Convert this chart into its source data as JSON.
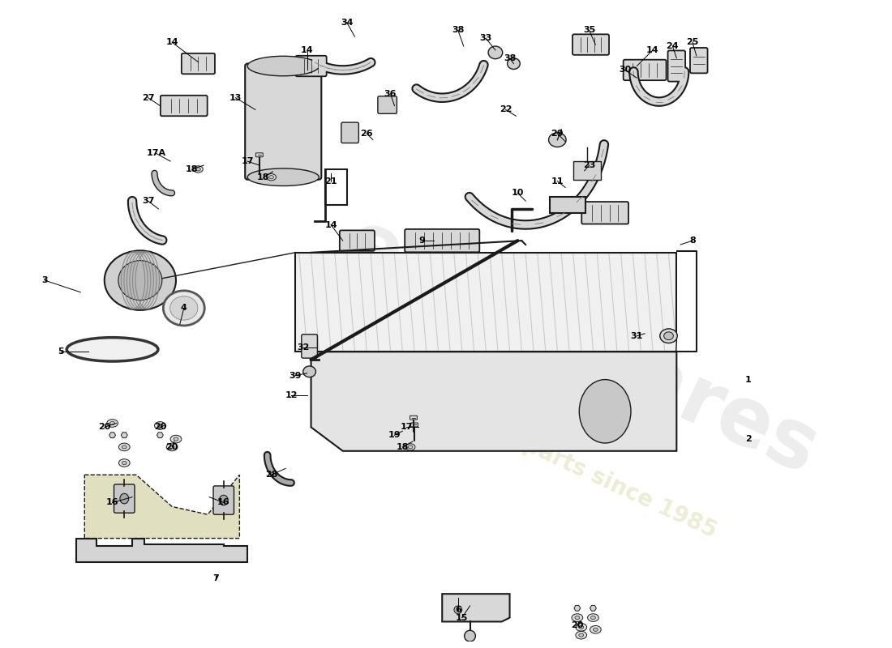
{
  "bg_color": "#ffffff",
  "lc": "#1a1a1a",
  "lw": 1.0,
  "watermark1": "eurospares",
  "watermark2": "a passion for parts since 1985",
  "labels": [
    [
      "1",
      940,
      470
    ],
    [
      "2",
      940,
      545
    ],
    [
      "3",
      55,
      345
    ],
    [
      "4",
      230,
      380
    ],
    [
      "5",
      75,
      435
    ],
    [
      "6",
      575,
      760
    ],
    [
      "7",
      270,
      720
    ],
    [
      "8",
      870,
      295
    ],
    [
      "9",
      530,
      295
    ],
    [
      "10",
      650,
      235
    ],
    [
      "11",
      700,
      220
    ],
    [
      "12",
      365,
      490
    ],
    [
      "13",
      295,
      115
    ],
    [
      "14",
      215,
      45
    ],
    [
      "14",
      385,
      55
    ],
    [
      "14",
      415,
      275
    ],
    [
      "14",
      820,
      55
    ],
    [
      "15",
      580,
      770
    ],
    [
      "16",
      140,
      625
    ],
    [
      "16",
      280,
      625
    ],
    [
      "17",
      310,
      195
    ],
    [
      "17",
      510,
      530
    ],
    [
      "17A",
      195,
      185
    ],
    [
      "18",
      240,
      205
    ],
    [
      "18",
      330,
      215
    ],
    [
      "18",
      505,
      555
    ],
    [
      "19",
      495,
      540
    ],
    [
      "20",
      130,
      530
    ],
    [
      "20",
      200,
      530
    ],
    [
      "20",
      215,
      555
    ],
    [
      "20",
      725,
      780
    ],
    [
      "21",
      415,
      220
    ],
    [
      "22",
      635,
      130
    ],
    [
      "23",
      740,
      200
    ],
    [
      "24",
      845,
      50
    ],
    [
      "25",
      870,
      45
    ],
    [
      "26",
      460,
      160
    ],
    [
      "27",
      185,
      115
    ],
    [
      "28",
      340,
      590
    ],
    [
      "29",
      700,
      160
    ],
    [
      "30",
      785,
      80
    ],
    [
      "31",
      800,
      415
    ],
    [
      "32",
      380,
      430
    ],
    [
      "33",
      610,
      40
    ],
    [
      "34",
      435,
      20
    ],
    [
      "35",
      740,
      30
    ],
    [
      "36",
      490,
      110
    ],
    [
      "37",
      185,
      245
    ],
    [
      "38",
      575,
      30
    ],
    [
      "38",
      640,
      65
    ],
    [
      "39",
      370,
      465
    ]
  ],
  "leader_lines": [
    [
      215,
      45,
      248,
      70
    ],
    [
      385,
      55,
      385,
      80
    ],
    [
      415,
      275,
      430,
      295
    ],
    [
      820,
      55,
      800,
      75
    ],
    [
      55,
      345,
      100,
      360
    ],
    [
      230,
      380,
      225,
      400
    ],
    [
      75,
      435,
      110,
      435
    ],
    [
      575,
      760,
      575,
      745
    ],
    [
      270,
      720,
      270,
      715
    ],
    [
      870,
      295,
      855,
      300
    ],
    [
      530,
      295,
      545,
      295
    ],
    [
      650,
      235,
      660,
      245
    ],
    [
      700,
      220,
      710,
      228
    ],
    [
      365,
      490,
      385,
      490
    ],
    [
      295,
      115,
      320,
      130
    ],
    [
      580,
      770,
      590,
      755
    ],
    [
      140,
      625,
      165,
      618
    ],
    [
      280,
      625,
      262,
      618
    ],
    [
      310,
      195,
      325,
      200
    ],
    [
      510,
      530,
      525,
      530
    ],
    [
      195,
      185,
      213,
      195
    ],
    [
      240,
      205,
      255,
      200
    ],
    [
      330,
      215,
      342,
      208
    ],
    [
      505,
      555,
      518,
      548
    ],
    [
      495,
      540,
      505,
      535
    ],
    [
      130,
      530,
      145,
      525
    ],
    [
      200,
      530,
      205,
      528
    ],
    [
      215,
      555,
      218,
      548
    ],
    [
      725,
      780,
      730,
      775
    ],
    [
      415,
      220,
      415,
      210
    ],
    [
      635,
      130,
      648,
      138
    ],
    [
      740,
      200,
      734,
      207
    ],
    [
      845,
      50,
      850,
      65
    ],
    [
      870,
      45,
      875,
      62
    ],
    [
      460,
      160,
      468,
      168
    ],
    [
      185,
      115,
      200,
      125
    ],
    [
      340,
      590,
      358,
      582
    ],
    [
      700,
      160,
      710,
      170
    ],
    [
      785,
      80,
      800,
      90
    ],
    [
      800,
      415,
      810,
      412
    ],
    [
      380,
      430,
      397,
      430
    ],
    [
      610,
      40,
      622,
      55
    ],
    [
      435,
      20,
      445,
      38
    ],
    [
      740,
      30,
      748,
      48
    ],
    [
      490,
      110,
      495,
      125
    ],
    [
      185,
      245,
      198,
      255
    ],
    [
      575,
      30,
      582,
      50
    ],
    [
      640,
      65,
      645,
      72
    ],
    [
      370,
      465,
      385,
      462
    ]
  ]
}
